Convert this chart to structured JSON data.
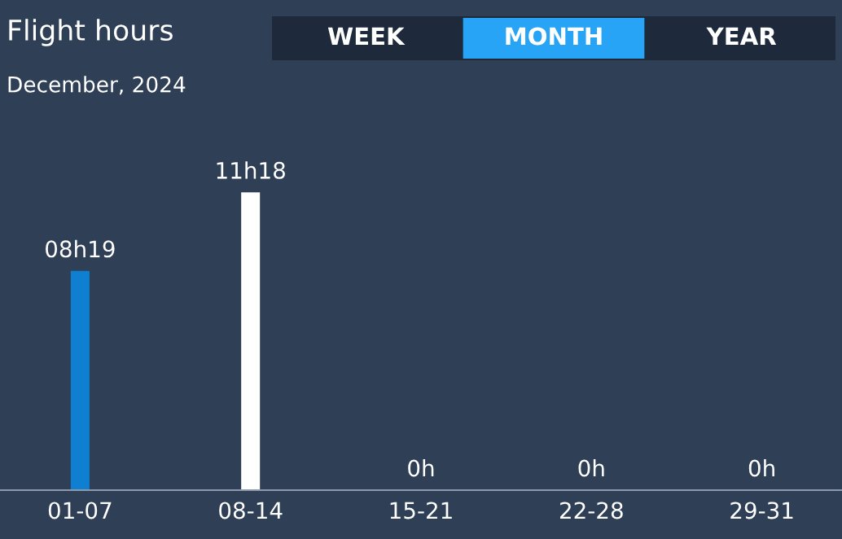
{
  "chart_data": {
    "type": "bar",
    "title": "Flight hours",
    "subtitle": "December, 2024",
    "annotations": [
      "WEEK",
      "MONTH",
      "YEAR"
    ],
    "categories": [
      "01-07",
      "08-14",
      "15-21",
      "22-28",
      "29-31"
    ],
    "values": [
      8.317,
      11.3,
      0,
      0,
      0
    ],
    "colors": [
      "#0f7fd2",
      "#ffffff",
      "#0f7fd2",
      "#0f7fd2",
      "#0f7fd2"
    ],
    "value_labels": [
      "08h19",
      "11h18",
      "0h",
      "0h",
      "0h"
    ],
    "grid": false,
    "legend": false
  }
}
